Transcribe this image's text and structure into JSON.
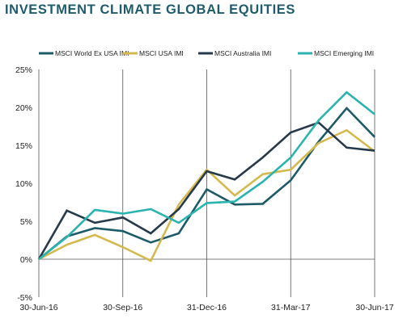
{
  "title": "INVESTMENT CLIMATE GLOBAL EQUITIES",
  "chart_data": {
    "type": "line",
    "title": "INVESTMENT CLIMATE GLOBAL EQUITIES",
    "xlabel": "",
    "ylabel": "",
    "x_tick_labels": [
      "30-Jun-16",
      "30-Sep-16",
      "31-Dec-16",
      "31-Mar-17",
      "30-Jun-17"
    ],
    "y_tick_labels": [
      "25%",
      "20%",
      "15%",
      "10%",
      "5%",
      "0%",
      "-5%"
    ],
    "ylim": [
      -5,
      25
    ],
    "x_points": 13,
    "grid": "vertical lines at x tick dates",
    "legend_position": "top",
    "series": [
      {
        "name": "MSCI World Ex USA IMI",
        "color": "#1d5b68",
        "values": [
          0,
          3.0,
          4.1,
          3.7,
          2.2,
          3.4,
          9.2,
          7.2,
          7.3,
          10.4,
          15.5,
          19.9,
          16.1
        ]
      },
      {
        "name": "MSCI USA IMI",
        "color": "#d4b94e",
        "values": [
          0,
          1.9,
          3.2,
          1.6,
          -0.2,
          7.2,
          11.8,
          8.4,
          11.2,
          11.8,
          15.3,
          17.0,
          14.2
        ]
      },
      {
        "name": "MSCI Australia IMI",
        "color": "#273a4a",
        "values": [
          0,
          6.4,
          4.8,
          5.5,
          3.4,
          6.6,
          11.6,
          10.5,
          13.4,
          16.7,
          18.0,
          14.7,
          14.3
        ]
      },
      {
        "name": "MSCI Emerging IMI",
        "color": "#2bb3b0",
        "values": [
          0,
          2.9,
          6.5,
          6.0,
          6.6,
          4.8,
          7.4,
          7.6,
          10.2,
          13.4,
          18.3,
          22.0,
          19.1
        ]
      }
    ]
  }
}
